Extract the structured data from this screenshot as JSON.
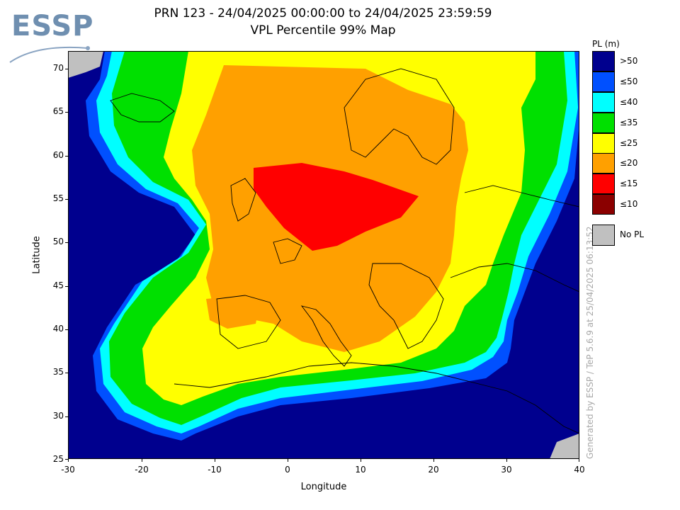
{
  "logo": {
    "text": "ESSP"
  },
  "header": {
    "title_line1": "PRN 123 - 24/04/2025 00:00:00 to 24/04/2025 23:59:59",
    "title_line2": "VPL Percentile 99% Map"
  },
  "axes": {
    "xlabel": "Longitude",
    "ylabel": "Latitude",
    "xlim": [
      -30,
      40
    ],
    "ylim": [
      25,
      72.5
    ],
    "xticks": [
      "-30",
      "-20",
      "-10",
      "0",
      "10",
      "20",
      "30",
      "40"
    ],
    "yticks": [
      "70",
      "65",
      "60",
      "55",
      "50",
      "45",
      "40",
      "35",
      "30",
      "25"
    ]
  },
  "legend": {
    "title": "PL (m)",
    "items": [
      {
        "label": ">50",
        "color": "#00008e"
      },
      {
        "label": "≤50",
        "color": "#0050ff"
      },
      {
        "label": "≤40",
        "color": "#00ffff"
      },
      {
        "label": "≤35",
        "color": "#00e000"
      },
      {
        "label": "≤25",
        "color": "#ffff00"
      },
      {
        "label": "≤20",
        "color": "#ffa000"
      },
      {
        "label": "≤15",
        "color": "#ff0000"
      },
      {
        "label": "≤10",
        "color": "#8b0000"
      }
    ],
    "nopl": {
      "label": "No PL",
      "color": "#c0c0c0"
    }
  },
  "watermark": "Generated by ESSP / TeP 5.6.9 at 25/04/2025 06:13:52"
}
